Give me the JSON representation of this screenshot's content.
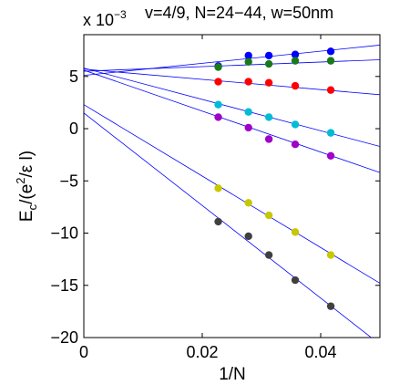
{
  "chart_data": {
    "type": "scatter",
    "title": "v=4/9, N=24−44, w=50nm",
    "xlabel": "1/N",
    "ylabel": "E",
    "ylabel_sub": "c",
    "ylabel_unit_open": "/(e",
    "ylabel_sup": "2",
    "ylabel_unit_close": "/ε l)",
    "y_multiplier_base": "x 10",
    "y_multiplier_exp": "−3",
    "xlim": [
      0,
      0.05
    ],
    "ylim": [
      -20,
      9
    ],
    "x_ticks": [
      0,
      0.02,
      0.04
    ],
    "x_tick_labels": [
      "0",
      "0.02",
      "0.04"
    ],
    "y_ticks": [
      -20,
      -15,
      -10,
      -5,
      0,
      5
    ],
    "y_tick_labels": [
      "−20",
      "−15",
      "−10",
      "−5",
      "0",
      "5"
    ],
    "x": [
      0.0227,
      0.0278,
      0.03125,
      0.0357,
      0.0417
    ],
    "series": [
      {
        "color": "#0000ff",
        "values": [
          6.0,
          7.0,
          7.0,
          7.1,
          7.4
        ],
        "fit": [
          5.1,
          58.0
        ]
      },
      {
        "color": "#1a7a1a",
        "values": [
          5.9,
          6.4,
          6.2,
          6.5,
          6.5
        ],
        "fit": [
          5.5,
          22.0
        ]
      },
      {
        "color": "#ff0000",
        "values": [
          4.5,
          4.5,
          4.4,
          4.1,
          3.7
        ],
        "fit": [
          5.7,
          -49.0
        ]
      },
      {
        "color": "#00bcd4",
        "values": [
          2.3,
          1.6,
          1.1,
          0.4,
          -0.4
        ],
        "fit": [
          5.8,
          -150.0
        ]
      },
      {
        "color": "#a000c8",
        "values": [
          1.1,
          0.1,
          -1.0,
          -1.5,
          -2.6
        ],
        "fit": [
          5.6,
          -196.0
        ]
      },
      {
        "color": "#c8c800",
        "values": [
          -5.7,
          -7.1,
          -8.3,
          -9.9,
          -12.1
        ],
        "fit": [
          2.3,
          -342.0
        ]
      },
      {
        "color": "#404040",
        "values": [
          -8.9,
          -10.3,
          -12.1,
          -14.5,
          -17.0
        ],
        "fit": [
          1.5,
          -443.0
        ]
      }
    ]
  }
}
